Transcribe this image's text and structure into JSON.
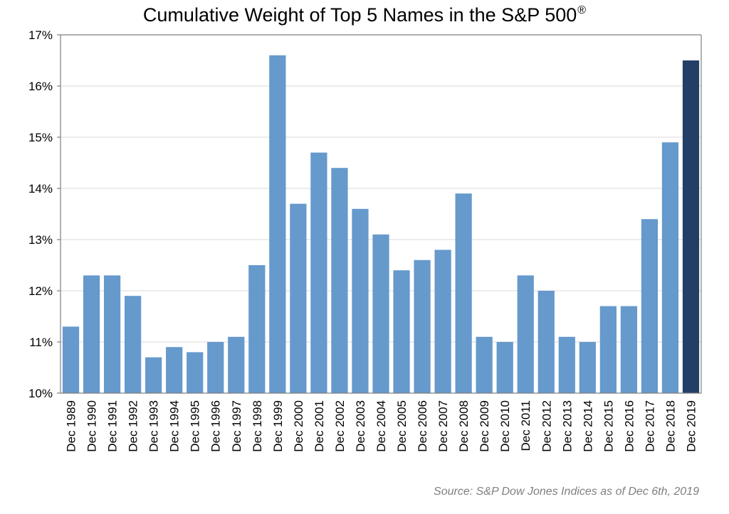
{
  "title": "Cumulative Weight of Top 5 Names in the S&P 500",
  "title_superscript": "®",
  "source": "Source: S&P Dow Jones Indices as of Dec 6th, 2019",
  "colors": {
    "bar": "#6699cc",
    "bar_highlight": "#233f67",
    "grid": "#d9d9d9",
    "axis": "#7f7f7f",
    "text": "#000000"
  },
  "chart_data": {
    "type": "bar",
    "title": "Cumulative Weight of Top 5 Names in the S&P 500®",
    "xlabel": "",
    "ylabel": "",
    "ylim": [
      10,
      17
    ],
    "yticks": [
      "10%",
      "11%",
      "12%",
      "13%",
      "14%",
      "15%",
      "16%",
      "17%"
    ],
    "grid": true,
    "categories": [
      "Dec 1989",
      "Dec 1990",
      "Dec 1991",
      "Dec 1992",
      "Dec 1993",
      "Dec 1994",
      "Dec 1995",
      "Dec 1996",
      "Dec 1997",
      "Dec 1998",
      "Dec 1999",
      "Dec 2000",
      "Dec 2001",
      "Dec 2002",
      "Dec 2003",
      "Dec 2004",
      "Dec 2005",
      "Dec 2006",
      "Dec 2007",
      "Dec 2008",
      "Dec 2009",
      "Dec 2010",
      "Dec 2011",
      "Dec 2012",
      "Dec 2013",
      "Dec 2014",
      "Dec 2015",
      "Dec 2016",
      "Dec 2017",
      "Dec 2018",
      "Dec 2019"
    ],
    "values": [
      11.3,
      12.3,
      12.3,
      11.9,
      10.7,
      10.9,
      10.8,
      11.0,
      11.1,
      12.5,
      16.6,
      13.7,
      14.7,
      14.4,
      13.6,
      13.1,
      12.4,
      12.6,
      12.8,
      13.9,
      11.1,
      11.0,
      12.3,
      12.0,
      11.1,
      11.0,
      11.7,
      11.7,
      13.4,
      14.9,
      16.5
    ],
    "highlight_category": "Dec 2019"
  }
}
